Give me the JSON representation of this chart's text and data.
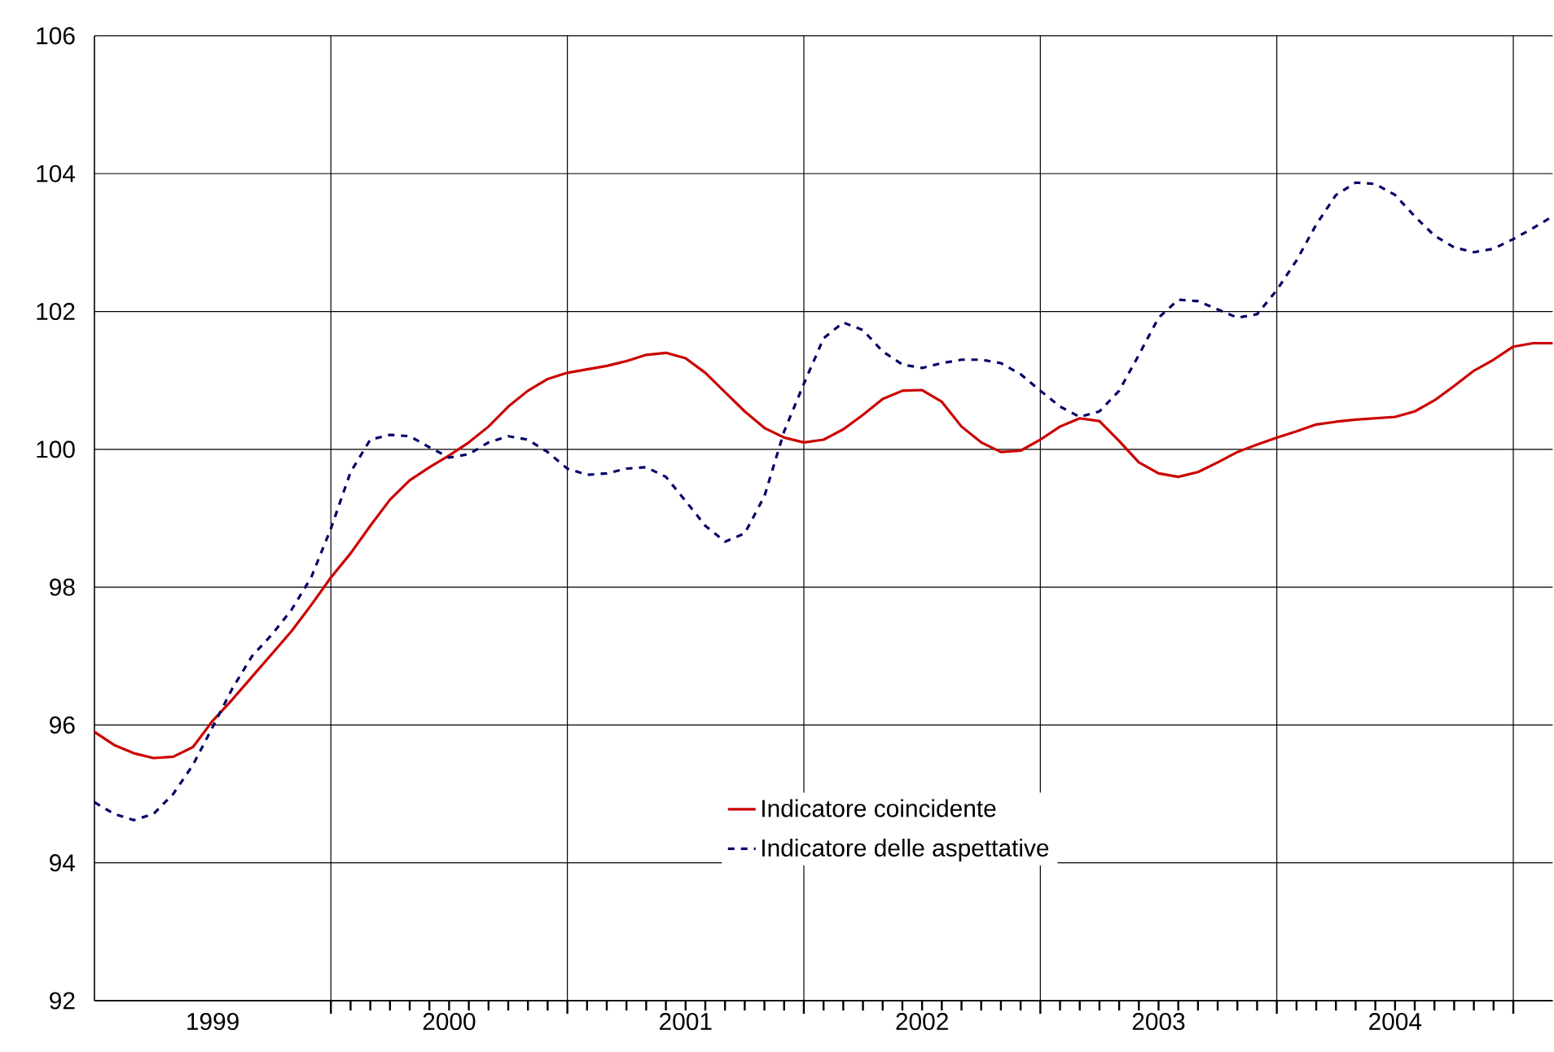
{
  "chart_data": {
    "type": "line",
    "x": [
      "1999-01",
      "1999-02",
      "1999-03",
      "1999-04",
      "1999-05",
      "1999-06",
      "1999-07",
      "1999-08",
      "1999-09",
      "1999-10",
      "1999-11",
      "1999-12",
      "2000-01",
      "2000-02",
      "2000-03",
      "2000-04",
      "2000-05",
      "2000-06",
      "2000-07",
      "2000-08",
      "2000-09",
      "2000-10",
      "2000-11",
      "2000-12",
      "2001-01",
      "2001-02",
      "2001-03",
      "2001-04",
      "2001-05",
      "2001-06",
      "2001-07",
      "2001-08",
      "2001-09",
      "2001-10",
      "2001-11",
      "2001-12",
      "2002-01",
      "2002-02",
      "2002-03",
      "2002-04",
      "2002-05",
      "2002-06",
      "2002-07",
      "2002-08",
      "2002-09",
      "2002-10",
      "2002-11",
      "2002-12",
      "2003-01",
      "2003-02",
      "2003-03",
      "2003-04",
      "2003-05",
      "2003-06",
      "2003-07",
      "2003-08",
      "2003-09",
      "2003-10",
      "2003-11",
      "2003-12",
      "2004-01",
      "2004-02",
      "2004-03",
      "2004-04",
      "2004-05",
      "2004-06",
      "2004-07",
      "2004-08",
      "2004-09",
      "2004-10",
      "2004-11",
      "2004-12",
      "2005-01",
      "2005-02",
      "2005-03"
    ],
    "series": [
      {
        "name": "Indicatore coincidente",
        "color": "#cc0000",
        "line_style": "solid",
        "values": [
          95.9,
          95.71,
          95.59,
          95.52,
          95.54,
          95.68,
          96.06,
          96.37,
          96.7,
          97.03,
          97.36,
          97.74,
          98.14,
          98.49,
          98.89,
          99.27,
          99.55,
          99.74,
          99.91,
          100.1,
          100.33,
          100.62,
          100.85,
          101.02,
          101.11,
          101.16,
          101.21,
          101.28,
          101.37,
          101.4,
          101.32,
          101.11,
          100.83,
          100.55,
          100.31,
          100.17,
          100.1,
          100.14,
          100.29,
          100.5,
          100.73,
          100.85,
          100.86,
          100.69,
          100.33,
          100.1,
          99.96,
          99.98,
          100.14,
          100.33,
          100.45,
          100.41,
          100.12,
          99.81,
          99.65,
          99.6,
          99.67,
          99.81,
          99.96,
          100.07,
          100.17,
          100.26,
          100.36,
          100.4,
          100.43,
          100.45,
          100.47,
          100.55,
          100.71,
          100.92,
          101.14,
          101.3,
          101.49,
          101.54,
          101.54
        ]
      },
      {
        "name": "Indicatore delle aspettative",
        "color": "#000066",
        "line_style": "dashed",
        "values": [
          94.88,
          94.71,
          94.62,
          94.71,
          95.0,
          95.42,
          95.97,
          96.53,
          97.0,
          97.31,
          97.67,
          98.14,
          98.85,
          99.67,
          100.14,
          100.21,
          100.19,
          100.03,
          99.88,
          99.93,
          100.1,
          100.19,
          100.14,
          99.96,
          99.72,
          99.63,
          99.65,
          99.72,
          99.74,
          99.6,
          99.25,
          98.89,
          98.66,
          98.78,
          99.32,
          100.26,
          100.95,
          101.61,
          101.84,
          101.73,
          101.42,
          101.23,
          101.18,
          101.25,
          101.3,
          101.3,
          101.25,
          101.09,
          100.85,
          100.62,
          100.47,
          100.55,
          100.85,
          101.37,
          101.91,
          102.17,
          102.15,
          102.03,
          101.91,
          101.96,
          102.31,
          102.74,
          103.26,
          103.69,
          103.87,
          103.85,
          103.69,
          103.38,
          103.1,
          102.93,
          102.86,
          102.91,
          103.05,
          103.21,
          103.38
        ]
      }
    ],
    "xlim": [
      "1999-01",
      "2005-03"
    ],
    "xticks": [
      {
        "value": "2000-01",
        "label": null
      },
      {
        "value": "2001-01",
        "label": null
      },
      {
        "value": "2002-01",
        "label": null
      },
      {
        "value": "2003-01",
        "label": null
      },
      {
        "value": "2004-01",
        "label": null
      },
      {
        "value": "2005-01",
        "label": null
      },
      {
        "value": "1999-07",
        "label": "1999"
      },
      {
        "value": "2000-07",
        "label": "2000"
      },
      {
        "value": "2001-07",
        "label": "2001"
      },
      {
        "value": "2002-07",
        "label": "2002"
      },
      {
        "value": "2003-07",
        "label": "2003"
      },
      {
        "value": "2004-07",
        "label": "2004"
      }
    ],
    "ylim": [
      92,
      106
    ],
    "yticks": [
      92,
      94,
      96,
      98,
      100,
      102,
      104,
      106
    ],
    "grid": true,
    "legend": "bottom"
  }
}
